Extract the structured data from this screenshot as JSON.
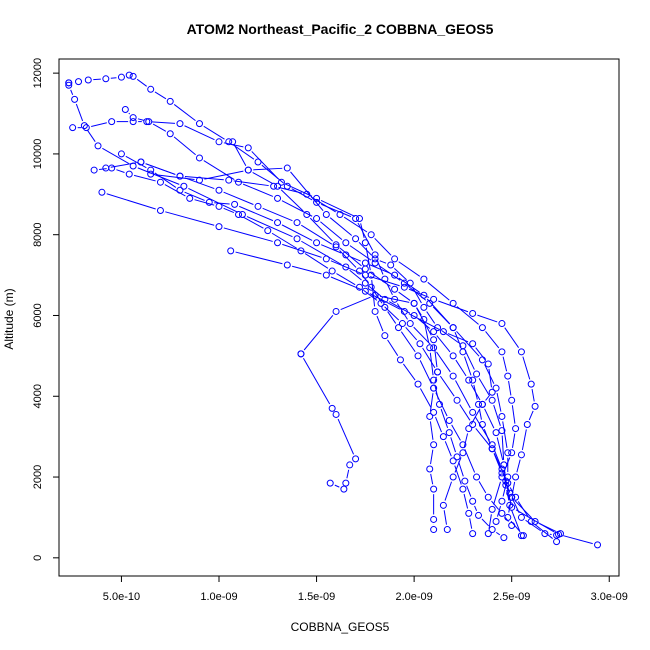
{
  "chart_data": {
    "type": "line",
    "title": "ATOM2 Northeast_Pacific_2 COBBNA_GEOS5",
    "xlabel": "COBBNA_GEOS5",
    "ylabel": "Altitude (m)",
    "xlim": [
      1.8e-10,
      3.05e-09
    ],
    "ylim": [
      -450,
      12350
    ],
    "x_ticks": [
      5e-10,
      1e-09,
      1.5e-09,
      2e-09,
      2.5e-09,
      3e-09
    ],
    "x_tick_labels": [
      "5.0e-10",
      "1.0e-09",
      "1.5e-09",
      "2.0e-09",
      "2.5e-09",
      "3.0e-09"
    ],
    "y_ticks": [
      0,
      2000,
      4000,
      6000,
      8000,
      10000,
      12000
    ],
    "y_tick_labels": [
      "0",
      "2000",
      "4000",
      "6000",
      "8000",
      "10000",
      "12000"
    ],
    "grid": false,
    "legend": "none",
    "series": [
      {
        "color": "#0000ff",
        "points": [
          [
            2.94e-09,
            320
          ],
          [
            2.74e-09,
            580
          ],
          [
            2.5e-09,
            1250
          ],
          [
            2.47e-09,
            1900
          ],
          [
            2.46e-09,
            2300
          ],
          [
            2.42e-09,
            3100
          ],
          [
            2.35e-09,
            3800
          ],
          [
            2.28e-09,
            4400
          ],
          [
            2.2e-09,
            5000
          ],
          [
            2.1e-09,
            5600
          ],
          [
            2e-09,
            6000
          ],
          [
            1.85e-09,
            6400
          ],
          [
            1.75e-09,
            6800
          ],
          [
            1.65e-09,
            7200
          ],
          [
            1.4e-09,
            7900
          ],
          [
            1.12e-09,
            8500
          ],
          [
            8.2e-10,
            9200
          ],
          [
            5.6e-10,
            9700
          ],
          [
            3.8e-10,
            10200
          ],
          [
            3.1e-10,
            10700
          ],
          [
            2.6e-10,
            11350
          ],
          [
            2.3e-10,
            11700
          ],
          [
            2.3e-10,
            11760
          ]
        ]
      },
      {
        "color": "#0000ff",
        "points": [
          [
            2.3e-10,
            11760
          ],
          [
            2.8e-10,
            11790
          ],
          [
            3.3e-10,
            11830
          ],
          [
            4.2e-10,
            11860
          ],
          [
            5e-10,
            11900
          ],
          [
            5.4e-10,
            11950
          ],
          [
            5.6e-10,
            11920
          ],
          [
            6.5e-10,
            11600
          ],
          [
            7.5e-10,
            11300
          ],
          [
            9e-10,
            10750
          ],
          [
            1.05e-09,
            10300
          ],
          [
            1.2e-09,
            9800
          ],
          [
            1.35e-09,
            9200
          ],
          [
            1.5e-09,
            8800
          ],
          [
            1.7e-09,
            8400
          ],
          [
            1.8e-09,
            7500
          ],
          [
            1.85e-09,
            6900
          ],
          [
            1.9e-09,
            6400
          ],
          [
            1.98e-09,
            5800
          ],
          [
            2.1e-09,
            5200
          ],
          [
            2.2e-09,
            4500
          ],
          [
            2.3e-09,
            3600
          ],
          [
            2.4e-09,
            2800
          ],
          [
            2.45e-09,
            2200
          ],
          [
            2.49e-09,
            1600
          ],
          [
            2.55e-09,
            1000
          ],
          [
            2.67e-09,
            600
          ],
          [
            2.73e-09,
            560
          ]
        ]
      },
      {
        "color": "#0000ff",
        "points": [
          [
            2.73e-09,
            400
          ],
          [
            2.6e-09,
            900
          ],
          [
            2.52e-09,
            1500
          ],
          [
            2.48e-09,
            1850
          ],
          [
            2.4e-09,
            2700
          ],
          [
            2.3e-09,
            3300
          ],
          [
            2.22e-09,
            3900
          ],
          [
            2.12e-09,
            4600
          ],
          [
            2.03e-09,
            5300
          ],
          [
            1.94e-09,
            5800
          ],
          [
            1.83e-09,
            6300
          ],
          [
            1.72e-09,
            6700
          ],
          [
            1.58e-09,
            7100
          ],
          [
            1.42e-09,
            7600
          ],
          [
            1.25e-09,
            8100
          ],
          [
            1.1e-09,
            8500
          ],
          [
            1e-09,
            8700
          ],
          [
            8.5e-10,
            8900
          ],
          [
            7e-10,
            9300
          ],
          [
            5.4e-10,
            9500
          ],
          [
            4.5e-10,
            9650
          ],
          [
            3.6e-10,
            9600
          ]
        ]
      },
      {
        "color": "#0000ff",
        "points": [
          [
            4.2e-10,
            9650
          ],
          [
            6e-10,
            9800
          ],
          [
            8e-10,
            9450
          ],
          [
            1e-09,
            9100
          ],
          [
            1.2e-09,
            8700
          ],
          [
            1.4e-09,
            8300
          ],
          [
            1.6e-09,
            7700
          ],
          [
            1.72e-09,
            7100
          ],
          [
            1.78e-09,
            6700
          ],
          [
            1.85e-09,
            6200
          ],
          [
            1.92e-09,
            5700
          ],
          [
            2.02e-09,
            5000
          ],
          [
            2.1e-09,
            4200
          ],
          [
            2.18e-09,
            3400
          ],
          [
            2.25e-09,
            2800
          ],
          [
            2.32e-09,
            2000
          ],
          [
            2.38e-09,
            1500
          ],
          [
            2.45e-09,
            1100
          ],
          [
            2.5e-09,
            800
          ]
        ]
      },
      {
        "color": "#0000ff",
        "points": [
          [
            4e-10,
            9050
          ],
          [
            7e-10,
            8600
          ],
          [
            1e-09,
            8200
          ],
          [
            1.3e-09,
            7800
          ],
          [
            1.55e-09,
            7400
          ],
          [
            1.75e-09,
            7000
          ],
          [
            1.95e-09,
            6700
          ],
          [
            2.1e-09,
            6400
          ],
          [
            2.3e-09,
            6050
          ],
          [
            2.45e-09,
            5800
          ],
          [
            2.55e-09,
            5100
          ],
          [
            2.6e-09,
            4300
          ],
          [
            2.62e-09,
            3750
          ],
          [
            2.58e-09,
            3300
          ],
          [
            2.55e-09,
            2550
          ],
          [
            2.52e-09,
            2000
          ],
          [
            2.5e-09,
            1500
          ],
          [
            2.48e-09,
            1000
          ],
          [
            2.56e-09,
            550
          ]
        ]
      },
      {
        "color": "#0000ff",
        "points": [
          [
            2.5e-10,
            10650
          ],
          [
            3.2e-10,
            10650
          ],
          [
            4.5e-10,
            10800
          ],
          [
            5.6e-10,
            10800
          ],
          [
            6.3e-10,
            10800
          ],
          [
            8e-10,
            10750
          ],
          [
            1e-09,
            10300
          ],
          [
            1.15e-09,
            10150
          ],
          [
            1.32e-09,
            9300
          ],
          [
            1.5e-09,
            8900
          ],
          [
            1.72e-09,
            8400
          ],
          [
            1.75e-09,
            7800
          ],
          [
            1.78e-09,
            7000
          ],
          [
            1.8e-09,
            6100
          ],
          [
            1.85e-09,
            5500
          ],
          [
            1.93e-09,
            4900
          ],
          [
            2.02e-09,
            4300
          ],
          [
            2.1e-09,
            3600
          ],
          [
            2.15e-09,
            3000
          ],
          [
            2.2e-09,
            2400
          ],
          [
            2.25e-09,
            1700
          ],
          [
            2.28e-09,
            1100
          ],
          [
            2.3e-09,
            600
          ]
        ]
      },
      {
        "color": "#0000ff",
        "points": [
          [
            5e-10,
            10000
          ],
          [
            6.5e-10,
            9600
          ],
          [
            8e-10,
            9100
          ],
          [
            9.5e-10,
            8800
          ],
          [
            1.08e-09,
            8750
          ],
          [
            1.3e-09,
            8300
          ],
          [
            1.5e-09,
            7800
          ],
          [
            1.65e-09,
            7500
          ],
          [
            1.75e-09,
            7300
          ],
          [
            1.9e-09,
            7000
          ],
          [
            2.05e-09,
            6500
          ],
          [
            2.2e-09,
            5700
          ],
          [
            2.35e-09,
            4900
          ],
          [
            2.42e-09,
            4200
          ],
          [
            2.45e-09,
            3500
          ],
          [
            2.48e-09,
            2600
          ],
          [
            2.48e-09,
            2000
          ],
          [
            2.45e-09,
            1400
          ],
          [
            2.42e-09,
            900
          ]
        ]
      },
      {
        "color": "#0000ff",
        "points": [
          [
            1.42e-09,
            5050
          ],
          [
            1.6e-09,
            6100
          ],
          [
            1.8e-09,
            6500
          ],
          [
            2e-09,
            6300
          ],
          [
            2.1e-09,
            5400
          ],
          [
            2.12e-09,
            4600
          ],
          [
            2.1e-09,
            4200
          ],
          [
            2.08e-09,
            3500
          ],
          [
            2.1e-09,
            2800
          ],
          [
            2.08e-09,
            2200
          ],
          [
            2.1e-09,
            1700
          ],
          [
            2.1e-09,
            950
          ],
          [
            2.1e-09,
            700
          ]
        ]
      },
      {
        "color": "#0000ff",
        "points": [
          [
            1.42e-09,
            5050
          ],
          [
            1.58e-09,
            3700
          ],
          [
            1.6e-09,
            3550
          ],
          [
            1.7e-09,
            2450
          ],
          [
            1.67e-09,
            2300
          ],
          [
            1.65e-09,
            1850
          ],
          [
            1.64e-09,
            1700
          ],
          [
            1.57e-09,
            1850
          ]
        ]
      },
      {
        "color": "#0000ff",
        "points": [
          [
            1.06e-09,
            7600
          ],
          [
            1.35e-09,
            7250
          ],
          [
            1.55e-09,
            7000
          ],
          [
            1.75e-09,
            6600
          ],
          [
            1.95e-09,
            6100
          ],
          [
            2.15e-09,
            5600
          ],
          [
            2.3e-09,
            5300
          ],
          [
            2.38e-09,
            4800
          ],
          [
            2.4e-09,
            4100
          ],
          [
            2.35e-09,
            3800
          ],
          [
            2.28e-09,
            3200
          ],
          [
            2.25e-09,
            2600
          ],
          [
            2.2e-09,
            2000
          ],
          [
            2.15e-09,
            1300
          ],
          [
            2.17e-09,
            700
          ]
        ]
      },
      {
        "color": "#0000ff",
        "points": [
          [
            6.5e-10,
            9500
          ],
          [
            9e-10,
            9350
          ],
          [
            1.15e-09,
            9600
          ],
          [
            1.35e-09,
            9650
          ],
          [
            1.55e-09,
            8500
          ],
          [
            1.7e-09,
            7900
          ],
          [
            1.8e-09,
            7400
          ],
          [
            1.88e-09,
            7250
          ],
          [
            1.98e-09,
            6800
          ],
          [
            2.05e-09,
            6200
          ],
          [
            2.12e-09,
            5700
          ],
          [
            2.25e-09,
            5250
          ],
          [
            2.32e-09,
            4550
          ],
          [
            2.4e-09,
            3900
          ],
          [
            2.45e-09,
            3150
          ],
          [
            2.46e-09,
            2300
          ],
          [
            2.47e-09,
            1800
          ],
          [
            2.49e-09,
            1300
          ],
          [
            2.55e-09,
            550
          ]
        ]
      },
      {
        "color": "#0000ff",
        "points": [
          [
            6e-10,
            9800
          ],
          [
            8e-10,
            9450
          ],
          [
            1.05e-09,
            9350
          ],
          [
            1.28e-09,
            9200
          ],
          [
            1.45e-09,
            9000
          ],
          [
            1.62e-09,
            8500
          ],
          [
            1.78e-09,
            8000
          ],
          [
            1.9e-09,
            7400
          ],
          [
            2.05e-09,
            6900
          ],
          [
            2.2e-09,
            6300
          ],
          [
            2.35e-09,
            5700
          ],
          [
            2.45e-09,
            5100
          ],
          [
            2.48e-09,
            4500
          ],
          [
            2.5e-09,
            3900
          ],
          [
            2.52e-09,
            3200
          ],
          [
            2.5e-09,
            2600
          ],
          [
            2.45e-09,
            2000
          ],
          [
            2.4e-09,
            1200
          ],
          [
            2.38e-09,
            600
          ]
        ]
      },
      {
        "color": "#0000ff",
        "points": [
          [
            1.07e-09,
            10300
          ],
          [
            1.15e-09,
            9600
          ],
          [
            1.3e-09,
            9200
          ],
          [
            1.45e-09,
            8500
          ],
          [
            1.6e-09,
            7750
          ],
          [
            1.75e-09,
            7150
          ],
          [
            1.9e-09,
            6650
          ],
          [
            2e-09,
            6300
          ],
          [
            2.05e-09,
            5900
          ],
          [
            2.08e-09,
            5200
          ],
          [
            2.1e-09,
            4400
          ],
          [
            2.13e-09,
            3800
          ],
          [
            2.18e-09,
            3100
          ],
          [
            2.22e-09,
            2500
          ],
          [
            2.26e-09,
            1900
          ],
          [
            2.3e-09,
            1400
          ],
          [
            2.33e-09,
            1050
          ],
          [
            2.4e-09,
            700
          ],
          [
            2.46e-09,
            500
          ]
        ]
      },
      {
        "color": "#0000ff",
        "points": [
          [
            5.2e-10,
            11100
          ],
          [
            5.6e-10,
            10900
          ],
          [
            6.4e-10,
            10800
          ],
          [
            7.5e-10,
            10500
          ],
          [
            9e-10,
            9900
          ],
          [
            1.1e-09,
            9300
          ],
          [
            1.3e-09,
            8900
          ],
          [
            1.5e-09,
            8400
          ],
          [
            1.65e-09,
            7800
          ],
          [
            1.8e-09,
            7300
          ],
          [
            1.95e-09,
            6800
          ],
          [
            2.08e-09,
            6300
          ],
          [
            2.2e-09,
            5700
          ],
          [
            2.25e-09,
            5100
          ],
          [
            2.3e-09,
            4400
          ],
          [
            2.33e-09,
            3800
          ],
          [
            2.35e-09,
            3300
          ],
          [
            2.4e-09,
            2700
          ],
          [
            2.45e-09,
            2100
          ],
          [
            2.5e-09,
            1500
          ],
          [
            2.62e-09,
            900
          ],
          [
            2.75e-09,
            600
          ]
        ]
      }
    ]
  }
}
